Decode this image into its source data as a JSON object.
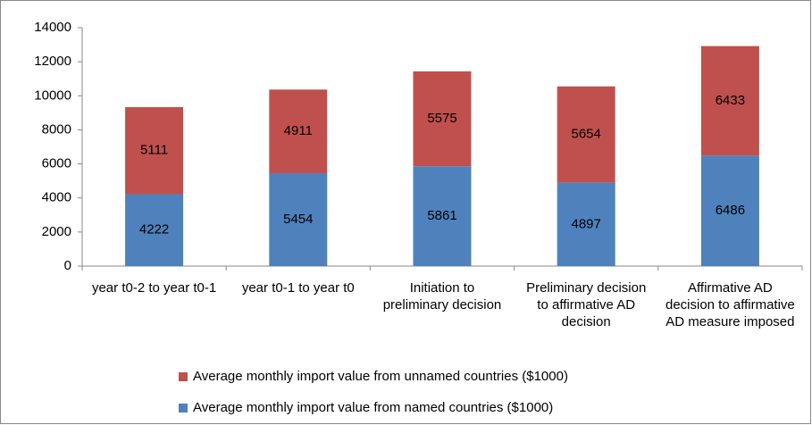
{
  "chart_data": {
    "type": "stacked-bar",
    "categories": [
      "year t0-2 to year t0-1",
      "year t0-1 to year t0",
      "Initiation to preliminary decision",
      "Preliminary decision to affirmative AD decision",
      "Affirmative AD decision to affirmative AD measure imposed"
    ],
    "series": [
      {
        "name": "Average monthly import value from named countries ($1000)",
        "color": "#4f81bd",
        "values": [
          4222,
          5454,
          5861,
          4897,
          6486
        ]
      },
      {
        "name": "Average monthly import value from unnamed countries ($1000)",
        "color": "#c0504d",
        "values": [
          5111,
          4911,
          5575,
          5654,
          6433
        ]
      }
    ],
    "ylim": [
      0,
      14000
    ],
    "yticks": [
      0,
      2000,
      4000,
      6000,
      8000,
      10000,
      12000,
      14000
    ],
    "grid": false
  }
}
